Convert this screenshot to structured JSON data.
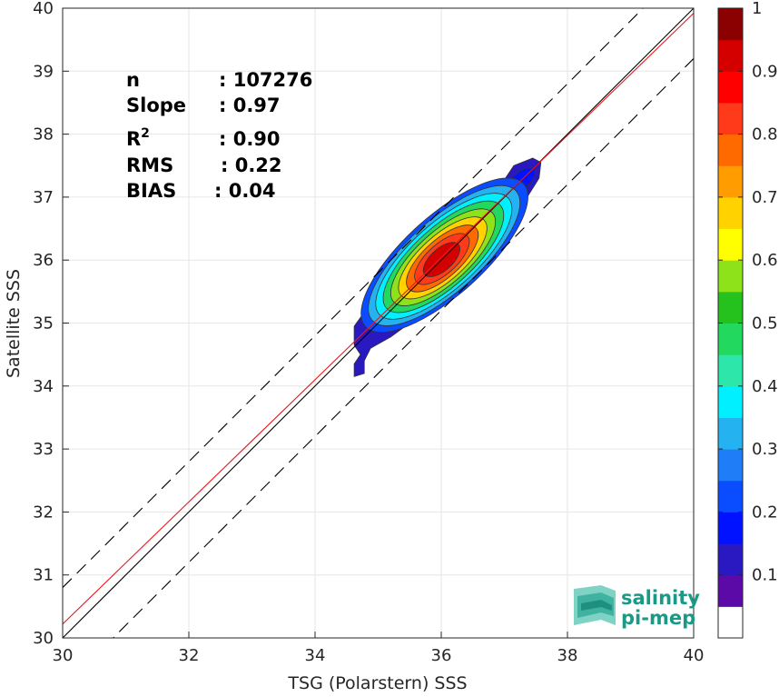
{
  "chart_data": {
    "type": "heatmap",
    "subtype": "density contour",
    "xlabel": "TSG (Polarstern) SSS",
    "ylabel": "Satellite SSS",
    "xlim": [
      30,
      40
    ],
    "ylim": [
      30,
      40
    ],
    "x_ticks": [
      "30",
      "32",
      "34",
      "36",
      "38",
      "40"
    ],
    "y_ticks": [
      "30",
      "31",
      "32",
      "33",
      "34",
      "35",
      "36",
      "37",
      "38",
      "39",
      "40"
    ],
    "grid": true,
    "stats": [
      {
        "label": "n",
        "value": ": 107276"
      },
      {
        "label": "Slope",
        "value": ": 0.97"
      },
      {
        "label": "R2",
        "value": ": 0.90"
      },
      {
        "label": "RMS",
        "value": ": 0.22"
      },
      {
        "label": "BIAS",
        "value": ": 0.04"
      }
    ],
    "reference_lines": {
      "identity": {
        "slope": 1,
        "intercept": 0,
        "color": "#000000",
        "style": "solid"
      },
      "fit": {
        "slope": 0.97,
        "intercept": 1.12,
        "color": "#e8181e",
        "style": "solid"
      },
      "upper_bound": {
        "slope": 1,
        "intercept": 0.8,
        "color": "#000000",
        "style": "dashed"
      },
      "lower_bound": {
        "slope": 1,
        "intercept": -0.8,
        "color": "#000000",
        "style": "dashed"
      }
    },
    "density_center": [
      36.0,
      36.0
    ],
    "density_levels": [
      0.05,
      0.15,
      0.25,
      0.35,
      0.45,
      0.55,
      0.65,
      0.75,
      0.85,
      0.95
    ],
    "colorbar": {
      "ticks": [
        "0.1",
        "0.2",
        "0.3",
        "0.4",
        "0.5",
        "0.6",
        "0.7",
        "0.8",
        "0.9",
        "1"
      ],
      "range": [
        0,
        1
      ],
      "colors": [
        "#ffffff",
        "#5b0aa8",
        "#2a18c0",
        "#0012ff",
        "#0a4cff",
        "#1f7ef7",
        "#25b2f0",
        "#00f0ff",
        "#2ce6aa",
        "#22d85e",
        "#25c11c",
        "#8ee21a",
        "#ffff00",
        "#ffd200",
        "#ff9d00",
        "#ff6a00",
        "#ff3a1a",
        "#ff0000",
        "#d40000",
        "#8b0000"
      ]
    }
  },
  "logo": {
    "line1": "salinity",
    "line2": "pi-mep"
  }
}
